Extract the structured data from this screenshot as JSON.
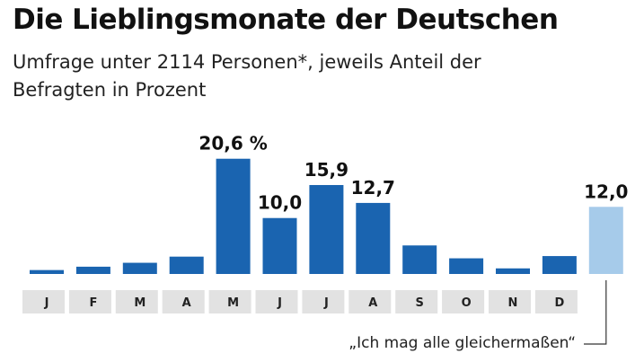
{
  "title": "Die Lieblingsmonate der Deutschen",
  "subtitle": "Umfrage unter 2114 Personen*, jeweils Anteil der Befragten in Prozent",
  "note": "„Ich mag alle gleichermaßen“",
  "colors": {
    "bar": "#1a64b0",
    "bar_highlight": "#a6cbea",
    "label_bg": "#e2e2e2",
    "connector": "#333333"
  },
  "chart_data": {
    "type": "bar",
    "categories": [
      "J",
      "F",
      "M",
      "A",
      "M",
      "J",
      "J",
      "A",
      "S",
      "O",
      "N",
      "D",
      ""
    ],
    "values": [
      0.7,
      1.3,
      2.0,
      3.1,
      20.6,
      10.0,
      15.9,
      12.7,
      5.1,
      2.8,
      1.0,
      3.2,
      12.0
    ],
    "value_labels": [
      "",
      "",
      "",
      "",
      "20,6 %",
      "10,0",
      "15,9",
      "12,7",
      "",
      "",
      "",
      "",
      "12,0"
    ],
    "ylim": [
      0,
      22
    ],
    "grid": false,
    "legend": "none"
  }
}
